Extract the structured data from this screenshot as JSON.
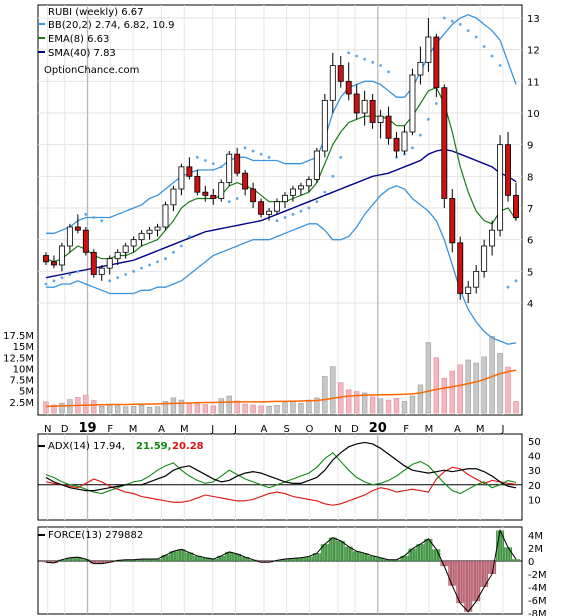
{
  "legend": {
    "title": "RUBI (weekly) 6.67",
    "bb": "BB(20,2) 2.74, 6.82, 10.9",
    "ema": "EMA(8) 6.63",
    "sma": "SMA(40) 7.83",
    "site": "OptionChance.com"
  },
  "adx_legend": {
    "label": "ADX(14) 17.94,",
    "plus_di": "21.59,",
    "minus_di": "20.28"
  },
  "force_legend": {
    "label": "FORCE(13) 279882"
  },
  "colors": {
    "up": "#0b8a0b",
    "down": "#cc1111",
    "bb": "#3a94dc",
    "ema": "#1a7a1a",
    "sma": "#00008b",
    "psar": "#5aa8e8",
    "volume_up": "#c8c8c8",
    "volume_down": "#f2b8c0",
    "volume_ma": "#ff6600",
    "adx": "#000000",
    "plus_di": "#118811",
    "minus_di": "#dd1111"
  },
  "chart_data": [
    {
      "type": "candlestick",
      "panel": "price",
      "x_tick_labels": [
        "N",
        "D",
        "19",
        "F",
        "M",
        "A",
        "M",
        "J",
        "J",
        "A",
        "S",
        "O",
        "N",
        "D",
        "20",
        "F",
        "M",
        "A",
        "M",
        "J"
      ],
      "y_tick_labels": [
        "4",
        "5",
        "6",
        "7",
        "8",
        "9",
        "10",
        "11",
        "12",
        "13"
      ],
      "ylim": [
        2.7,
        13.3
      ],
      "ohlc": [
        [
          5.5,
          5.6,
          5.2,
          5.3
        ],
        [
          5.3,
          5.5,
          5.1,
          5.2
        ],
        [
          5.2,
          5.9,
          5.0,
          5.8
        ],
        [
          5.8,
          6.5,
          5.6,
          6.4
        ],
        [
          6.4,
          6.8,
          6.2,
          6.3
        ],
        [
          6.3,
          6.4,
          5.5,
          5.6
        ],
        [
          5.6,
          5.7,
          4.8,
          4.9
        ],
        [
          4.9,
          5.2,
          4.7,
          5.1
        ],
        [
          5.1,
          5.5,
          4.9,
          5.4
        ],
        [
          5.4,
          5.7,
          5.2,
          5.6
        ],
        [
          5.6,
          5.9,
          5.4,
          5.8
        ],
        [
          5.8,
          6.1,
          5.6,
          6.0
        ],
        [
          6.0,
          6.3,
          5.8,
          6.2
        ],
        [
          6.2,
          6.4,
          6.0,
          6.3
        ],
        [
          6.3,
          6.5,
          6.1,
          6.4
        ],
        [
          6.4,
          7.2,
          6.3,
          7.1
        ],
        [
          7.1,
          7.7,
          6.9,
          7.6
        ],
        [
          7.6,
          8.4,
          7.4,
          8.3
        ],
        [
          8.3,
          8.6,
          7.9,
          8.0
        ],
        [
          8.0,
          8.2,
          7.4,
          7.5
        ],
        [
          7.5,
          7.7,
          7.2,
          7.4
        ],
        [
          7.4,
          7.6,
          7.1,
          7.3
        ],
        [
          7.3,
          7.9,
          7.2,
          7.8
        ],
        [
          7.8,
          8.8,
          7.7,
          8.7
        ],
        [
          8.7,
          8.9,
          8.0,
          8.1
        ],
        [
          8.1,
          8.2,
          7.4,
          7.6
        ],
        [
          7.6,
          7.8,
          7.0,
          7.2
        ],
        [
          7.2,
          7.3,
          6.7,
          6.8
        ],
        [
          6.8,
          7.0,
          6.6,
          6.9
        ],
        [
          6.9,
          7.3,
          6.8,
          7.2
        ],
        [
          7.2,
          7.5,
          7.0,
          7.4
        ],
        [
          7.4,
          7.7,
          7.2,
          7.6
        ],
        [
          7.6,
          7.8,
          7.4,
          7.7
        ],
        [
          7.7,
          8.0,
          7.5,
          7.9
        ],
        [
          7.9,
          8.9,
          7.8,
          8.8
        ],
        [
          8.8,
          10.6,
          8.6,
          10.4
        ],
        [
          10.4,
          11.9,
          10.0,
          11.5
        ],
        [
          11.5,
          11.8,
          10.8,
          11.0
        ],
        [
          11.0,
          11.6,
          10.4,
          10.6
        ],
        [
          10.6,
          10.9,
          9.8,
          10.0
        ],
        [
          10.0,
          10.7,
          9.6,
          10.4
        ],
        [
          10.4,
          10.6,
          9.5,
          9.7
        ],
        [
          9.7,
          10.1,
          9.2,
          9.9
        ],
        [
          9.9,
          10.2,
          9.0,
          9.2
        ],
        [
          9.2,
          9.4,
          8.6,
          8.8
        ],
        [
          8.8,
          9.6,
          8.7,
          9.4
        ],
        [
          9.4,
          11.4,
          9.3,
          11.2
        ],
        [
          11.2,
          12.1,
          10.9,
          11.6
        ],
        [
          11.6,
          13.0,
          11.3,
          12.4
        ],
        [
          12.4,
          12.5,
          10.5,
          10.8
        ],
        [
          10.8,
          10.9,
          7.0,
          7.3
        ],
        [
          7.3,
          7.6,
          5.6,
          5.9
        ],
        [
          5.9,
          6.1,
          4.1,
          4.3
        ],
        [
          4.3,
          4.7,
          4.0,
          4.5
        ],
        [
          4.5,
          5.2,
          4.3,
          5.0
        ],
        [
          5.0,
          6.0,
          4.8,
          5.8
        ],
        [
          5.8,
          6.6,
          5.5,
          6.3
        ],
        [
          6.3,
          9.3,
          6.1,
          9.0
        ],
        [
          9.0,
          9.4,
          7.2,
          7.4
        ],
        [
          7.4,
          7.8,
          6.6,
          6.7
        ]
      ],
      "bollinger_upper": [
        6.2,
        6.2,
        6.3,
        6.4,
        6.6,
        6.7,
        6.7,
        6.7,
        6.7,
        6.8,
        6.9,
        7.0,
        7.1,
        7.3,
        7.4,
        7.6,
        7.8,
        8.0,
        8.1,
        8.2,
        8.2,
        8.2,
        8.3,
        8.5,
        8.6,
        8.6,
        8.5,
        8.5,
        8.5,
        8.5,
        8.4,
        8.4,
        8.4,
        8.5,
        8.6,
        9.2,
        10.0,
        10.5,
        10.8,
        10.9,
        11.0,
        11.0,
        10.9,
        10.7,
        10.5,
        10.5,
        10.8,
        11.3,
        11.8,
        12.2,
        12.5,
        12.8,
        13.0,
        13.1,
        13.0,
        12.8,
        12.6,
        12.3,
        11.6,
        10.9
      ],
      "bollinger_lower": [
        4.5,
        4.5,
        4.6,
        4.6,
        4.7,
        4.6,
        4.5,
        4.4,
        4.3,
        4.3,
        4.3,
        4.3,
        4.4,
        4.4,
        4.5,
        4.5,
        4.6,
        4.7,
        4.9,
        5.1,
        5.3,
        5.5,
        5.6,
        5.7,
        5.8,
        5.9,
        6.0,
        6.0,
        6.0,
        6.1,
        6.2,
        6.3,
        6.4,
        6.5,
        6.5,
        6.3,
        6.0,
        6.0,
        6.1,
        6.4,
        6.8,
        7.1,
        7.4,
        7.6,
        7.7,
        7.6,
        7.3,
        7.1,
        6.9,
        6.6,
        6.0,
        5.2,
        4.4,
        3.8,
        3.4,
        3.1,
        2.9,
        2.8,
        2.7,
        2.74
      ],
      "ema8": [
        5.4,
        5.3,
        5.4,
        5.6,
        5.8,
        5.7,
        5.5,
        5.4,
        5.4,
        5.5,
        5.5,
        5.6,
        5.8,
        5.9,
        6.0,
        6.3,
        6.6,
        7.0,
        7.2,
        7.3,
        7.3,
        7.3,
        7.4,
        7.7,
        7.8,
        7.7,
        7.6,
        7.4,
        7.2,
        7.2,
        7.2,
        7.3,
        7.4,
        7.5,
        7.8,
        8.4,
        9.0,
        9.4,
        9.7,
        9.8,
        9.9,
        9.9,
        9.9,
        9.8,
        9.6,
        9.6,
        9.9,
        10.3,
        10.7,
        10.8,
        10.3,
        9.4,
        8.3,
        7.5,
        6.9,
        6.6,
        6.5,
        6.9,
        7.0,
        6.63
      ],
      "sma40": [
        4.8,
        4.85,
        4.9,
        4.95,
        5.0,
        5.05,
        5.1,
        5.15,
        5.2,
        5.25,
        5.3,
        5.35,
        5.45,
        5.55,
        5.65,
        5.75,
        5.85,
        5.95,
        6.05,
        6.15,
        6.25,
        6.3,
        6.35,
        6.4,
        6.45,
        6.5,
        6.55,
        6.6,
        6.7,
        6.8,
        6.9,
        7.0,
        7.1,
        7.2,
        7.3,
        7.4,
        7.5,
        7.6,
        7.7,
        7.8,
        7.9,
        8.0,
        8.05,
        8.1,
        8.2,
        8.3,
        8.4,
        8.5,
        8.7,
        8.8,
        8.85,
        8.8,
        8.7,
        8.6,
        8.5,
        8.4,
        8.3,
        8.1,
        8.0,
        7.83
      ],
      "psar": [
        4.6,
        4.7,
        4.8,
        4.9,
        5.0,
        6.8,
        6.7,
        6.6,
        4.7,
        4.8,
        4.9,
        5.0,
        5.1,
        5.2,
        5.3,
        5.4,
        5.6,
        5.8,
        6.1,
        8.6,
        8.5,
        8.4,
        8.3,
        7.2,
        7.3,
        8.9,
        8.8,
        8.7,
        8.6,
        6.6,
        6.7,
        6.8,
        6.9,
        7.0,
        7.2,
        7.5,
        8.0,
        8.6,
        11.9,
        11.8,
        11.7,
        11.6,
        11.5,
        11.3,
        8.6,
        8.7,
        8.9,
        9.3,
        9.8,
        10.3,
        13.0,
        12.9,
        12.8,
        12.6,
        12.4,
        12.1,
        11.8,
        11.5,
        4.5,
        4.7
      ],
      "volume_ylim": [
        0,
        18500000
      ],
      "volume_tick_labels": [
        "2.5M",
        "5M",
        "7.5M",
        "10M",
        "12.5M",
        "15M",
        "17.5M"
      ],
      "volume": [
        2.5,
        1.8,
        2.2,
        3.0,
        3.5,
        4.0,
        2.8,
        1.5,
        1.8,
        1.6,
        1.4,
        1.5,
        1.7,
        1.3,
        1.4,
        2.6,
        3.4,
        2.9,
        2.2,
        2.0,
        1.9,
        1.6,
        3.2,
        3.8,
        2.7,
        2.0,
        1.8,
        1.6,
        1.5,
        1.7,
        2.3,
        2.6,
        2.2,
        2.9,
        3.4,
        8.2,
        10.4,
        6.8,
        5.2,
        4.8,
        4.5,
        3.6,
        3.2,
        2.9,
        3.3,
        2.6,
        3.8,
        6.3,
        15.8,
        12.4,
        7.8,
        9.4,
        10.8,
        11.9,
        11.2,
        12.6,
        17.2,
        13.4,
        10.3,
        2.6
      ],
      "volume_ma": [
        1.5,
        1.55,
        1.6,
        1.65,
        1.7,
        1.75,
        1.8,
        1.85,
        1.9,
        1.9,
        1.9,
        1.95,
        2.0,
        2.0,
        2.05,
        2.1,
        2.15,
        2.2,
        2.25,
        2.3,
        2.35,
        2.35,
        2.4,
        2.45,
        2.5,
        2.5,
        2.5,
        2.5,
        2.55,
        2.6,
        2.6,
        2.65,
        2.7,
        2.75,
        2.8,
        3.0,
        3.3,
        3.6,
        3.8,
        3.9,
        4.0,
        4.05,
        4.1,
        4.1,
        4.15,
        4.2,
        4.3,
        4.5,
        4.9,
        5.3,
        5.6,
        5.9,
        6.2,
        6.6,
        7.0,
        7.5,
        8.2,
        8.8,
        9.3,
        9.6
      ]
    },
    {
      "type": "line",
      "panel": "adx",
      "ylim": [
        0,
        55
      ],
      "y_tick_labels": [
        "10",
        "20",
        "30",
        "40",
        "50"
      ],
      "adx": [
        25,
        22,
        20,
        18,
        17,
        16,
        16,
        17,
        18,
        19,
        20,
        20,
        20,
        22,
        24,
        26,
        30,
        32,
        33,
        30,
        27,
        24,
        22,
        23,
        26,
        28,
        29,
        28,
        26,
        24,
        22,
        21,
        21,
        23,
        25,
        30,
        37,
        42,
        46,
        48,
        49,
        48,
        45,
        41,
        37,
        33,
        30,
        29,
        28,
        29,
        30,
        29,
        30,
        31,
        31,
        29,
        26,
        22,
        19,
        17.94
      ],
      "plus_di": [
        27,
        25,
        22,
        20,
        19,
        17,
        15,
        14,
        16,
        18,
        20,
        22,
        23,
        26,
        30,
        33,
        35,
        30,
        26,
        23,
        21,
        22,
        26,
        30,
        27,
        24,
        22,
        20,
        18,
        20,
        22,
        24,
        26,
        28,
        32,
        38,
        42,
        36,
        30,
        25,
        22,
        20,
        21,
        23,
        26,
        30,
        34,
        36,
        33,
        27,
        21,
        16,
        14,
        17,
        20,
        22,
        18,
        20,
        23,
        21.59
      ],
      "minus_di": [
        22,
        21,
        20,
        19,
        18,
        21,
        24,
        22,
        19,
        17,
        15,
        14,
        12,
        11,
        10,
        9,
        8,
        8,
        9,
        11,
        13,
        12,
        11,
        10,
        9,
        9,
        10,
        12,
        14,
        15,
        14,
        12,
        11,
        10,
        9,
        7,
        6,
        7,
        9,
        11,
        13,
        16,
        18,
        17,
        15,
        16,
        17,
        16,
        15,
        24,
        29,
        32,
        31,
        27,
        24,
        21,
        23,
        22,
        21,
        20.28
      ]
    },
    {
      "type": "area",
      "panel": "force",
      "ylim": [
        -8600000,
        5200000
      ],
      "y_tick_labels": [
        "4M",
        "2M",
        "0",
        "-2M",
        "-4M",
        "-6M",
        "-8M"
      ],
      "values": [
        -0.2,
        -0.3,
        0.2,
        0.5,
        0.6,
        0.3,
        -0.4,
        -0.4,
        -0.2,
        0.1,
        0.2,
        0.2,
        0.3,
        0.3,
        0.3,
        0.9,
        1.5,
        1.8,
        1.3,
        0.8,
        0.5,
        0.3,
        0.8,
        1.4,
        1.1,
        0.6,
        0.2,
        -0.2,
        -0.2,
        0.1,
        0.3,
        0.4,
        0.5,
        0.7,
        1.2,
        2.6,
        3.6,
        3.1,
        2.2,
        1.5,
        1.2,
        0.8,
        0.5,
        0.2,
        0.2,
        0.8,
        1.9,
        2.6,
        3.4,
        1.8,
        -0.8,
        -3.8,
        -6.5,
        -7.8,
        -6.2,
        -4.0,
        -2.0,
        4.7,
        2.1,
        0.28
      ]
    }
  ]
}
